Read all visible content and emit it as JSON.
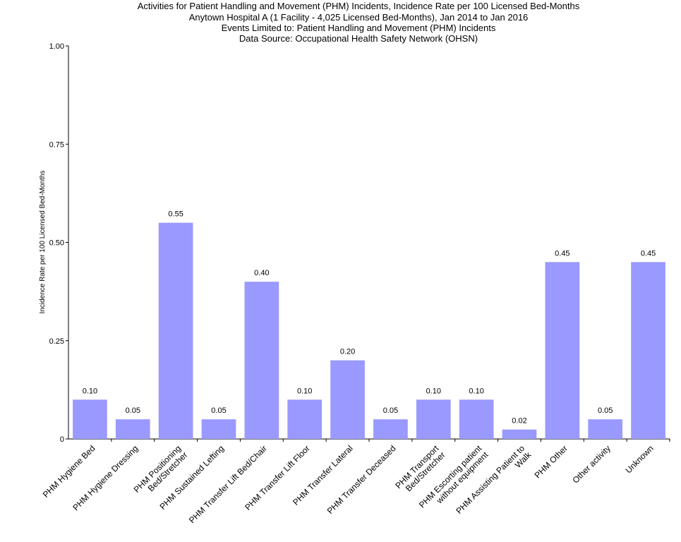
{
  "chart_data": {
    "type": "bar",
    "title": "Activities for Patient Handling and Movement (PHM) Incidents, Incidence Rate per 100 Licensed Bed-Months",
    "subtitles": [
      "Anytown Hospital A (1 Facility - 4,025 Licensed Bed-Months), Jan 2014 to Jan 2016",
      "Events Limited to: Patient Handling and Movement (PHM) Incidents",
      "Data Source: Occupational Health Safety Network (OHSN)"
    ],
    "y_label": "Incidence Rate per 100 Licensed Bed-Months",
    "categories": [
      [
        "PHM Hygiene Bed"
      ],
      [
        "PHM Hygiene Dressing"
      ],
      [
        "PHM Positioning",
        "Bed/Stretcher"
      ],
      [
        "PHM Sustained Lefting"
      ],
      [
        "PHM Transfer Lift Bed/Chair"
      ],
      [
        "PHM Transfer Lift Floor"
      ],
      [
        "PHM Transfer Lateral"
      ],
      [
        "PHM Transfer Deceased"
      ],
      [
        "PHM Transport",
        "Bed/Stretcher"
      ],
      [
        "PHM Escorting patient",
        "without equipment"
      ],
      [
        "PHM Assisting Patient to",
        "Walk"
      ],
      [
        "PHM Other"
      ],
      [
        "Other activity"
      ],
      [
        "Unknown"
      ]
    ],
    "values": [
      0.1,
      0.05,
      0.55,
      0.05,
      0.4,
      0.1,
      0.2,
      0.05,
      0.1,
      0.1,
      0.024,
      0.45,
      0.05,
      0.45
    ],
    "value_labels": [
      "0.10",
      "0.05",
      "0.55",
      "0.05",
      "0.40",
      "0.10",
      "0.20",
      "0.05",
      "0.10",
      "0.10",
      "0.02",
      "0.45",
      "0.05",
      "0.45"
    ],
    "color": "#9999ff",
    "ylim": [
      0,
      1
    ],
    "yticks": [
      0,
      0.25,
      {
        "value": 0.5,
        "label": "0.50"
      },
      0.75,
      {
        "value": 1,
        "label": "1.00"
      }
    ],
    "grid": false
  }
}
